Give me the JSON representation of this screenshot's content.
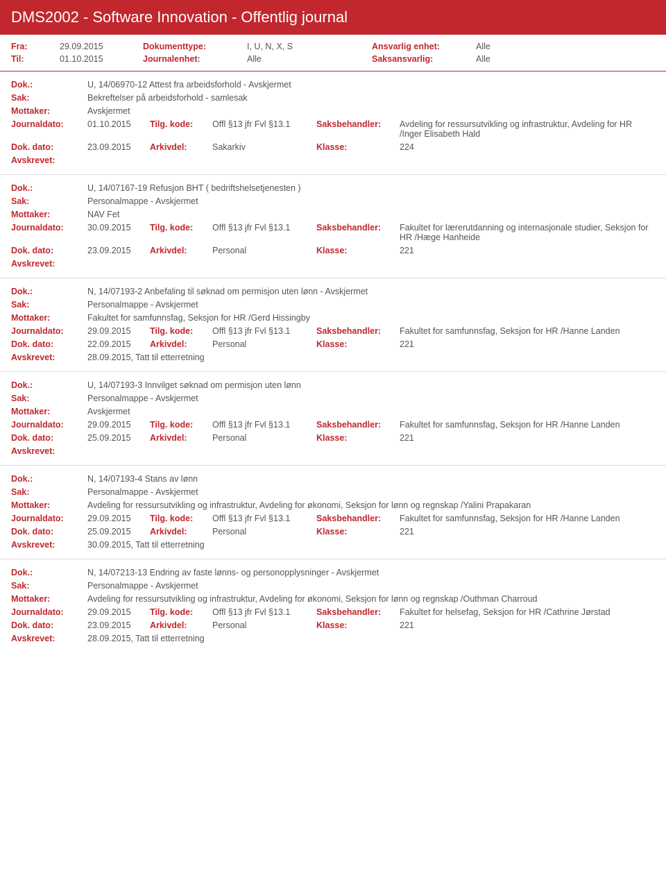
{
  "header": {
    "title": "DMS2002 - Software Innovation - Offentlig journal"
  },
  "meta": {
    "fra_label": "Fra:",
    "fra": "29.09.2015",
    "til_label": "Til:",
    "til": "01.10.2015",
    "dokumenttype_label": "Dokumenttype:",
    "dokumenttype": "I, U, N, X, S",
    "journalenhet_label": "Journalenhet:",
    "journalenhet": "Alle",
    "ansvarlig_label": "Ansvarlig enhet:",
    "ansvarlig": "Alle",
    "saksansvarlig_label": "Saksansvarlig:",
    "saksansvarlig": "Alle"
  },
  "labels": {
    "dok": "Dok.:",
    "sak": "Sak:",
    "mottaker": "Mottaker:",
    "journaldato": "Journaldato:",
    "tilgkode": "Tilg. kode:",
    "saksbehandler": "Saksbehandler:",
    "dokdato": "Dok. dato:",
    "arkivdel": "Arkivdel:",
    "klasse": "Klasse:",
    "avskrevet": "Avskrevet:"
  },
  "entries": [
    {
      "dok": "U, 14/06970-12 Attest fra arbeidsforhold - Avskjermet",
      "sak": "Bekreftelser på arbeidsforhold - samlesak",
      "mottaker": "Avskjermet",
      "journaldato": "01.10.2015",
      "tilgkode": "Offl §13 jfr Fvl §13.1",
      "saksbehandler": "Avdeling for ressursutvikling og infrastruktur, Avdeling for HR /Inger Elisabeth Hald",
      "dokdato": "23.09.2015",
      "arkivdel": "Sakarkiv",
      "klasse": "224",
      "avskrevet": ""
    },
    {
      "dok": "U, 14/07167-19 Refusjon BHT ( bedriftshelsetjenesten )",
      "sak": "Personalmappe - Avskjermet",
      "mottaker": "NAV Fet",
      "journaldato": "30.09.2015",
      "tilgkode": "Offl §13 jfr Fvl §13.1",
      "saksbehandler": "Fakultet for lærerutdanning og internasjonale studier, Seksjon for HR /Hæge Hanheide",
      "dokdato": "23.09.2015",
      "arkivdel": "Personal",
      "klasse": "221",
      "avskrevet": ""
    },
    {
      "dok": "N, 14/07193-2 Anbefaling til søknad om permisjon uten lønn - Avskjermet",
      "sak": "Personalmappe - Avskjermet",
      "mottaker": "Fakultet for samfunnsfag, Seksjon for HR /Gerd Hissingby",
      "journaldato": "29.09.2015",
      "tilgkode": "Offl §13 jfr Fvl §13.1",
      "saksbehandler": "Fakultet for samfunnsfag, Seksjon for HR /Hanne Landen",
      "dokdato": "22.09.2015",
      "arkivdel": "Personal",
      "klasse": "221",
      "avskrevet": "28.09.2015, Tatt til etterretning"
    },
    {
      "dok": "U, 14/07193-3 Innvilget søknad om permisjon uten lønn",
      "sak": "Personalmappe - Avskjermet",
      "mottaker": "Avskjermet",
      "journaldato": "29.09.2015",
      "tilgkode": "Offl §13 jfr Fvl §13.1",
      "saksbehandler": "Fakultet for samfunnsfag, Seksjon for HR /Hanne Landen",
      "dokdato": "25.09.2015",
      "arkivdel": "Personal",
      "klasse": "221",
      "avskrevet": ""
    },
    {
      "dok": "N, 14/07193-4 Stans av lønn",
      "sak": "Personalmappe - Avskjermet",
      "mottaker": "Avdeling for ressursutvikling og infrastruktur, Avdeling for økonomi, Seksjon for lønn og regnskap /Yalini Prapakaran",
      "journaldato": "29.09.2015",
      "tilgkode": "Offl §13 jfr Fvl §13.1",
      "saksbehandler": "Fakultet for samfunnsfag, Seksjon for HR /Hanne Landen",
      "dokdato": "25.09.2015",
      "arkivdel": "Personal",
      "klasse": "221",
      "avskrevet": "30.09.2015, Tatt til etterretning"
    },
    {
      "dok": "N, 14/07213-13 Endring av faste lønns- og personopplysninger - Avskjermet",
      "sak": "Personalmappe - Avskjermet",
      "mottaker": "Avdeling for ressursutvikling og infrastruktur, Avdeling for økonomi, Seksjon for lønn og regnskap /Outhman Charroud",
      "journaldato": "29.09.2015",
      "tilgkode": "Offl §13 jfr Fvl §13.1",
      "saksbehandler": "Fakultet for helsefag, Seksjon for HR /Cathrine Jørstad",
      "dokdato": "23.09.2015",
      "arkivdel": "Personal",
      "klasse": "221",
      "avskrevet": "28.09.2015, Tatt til etterretning"
    }
  ]
}
